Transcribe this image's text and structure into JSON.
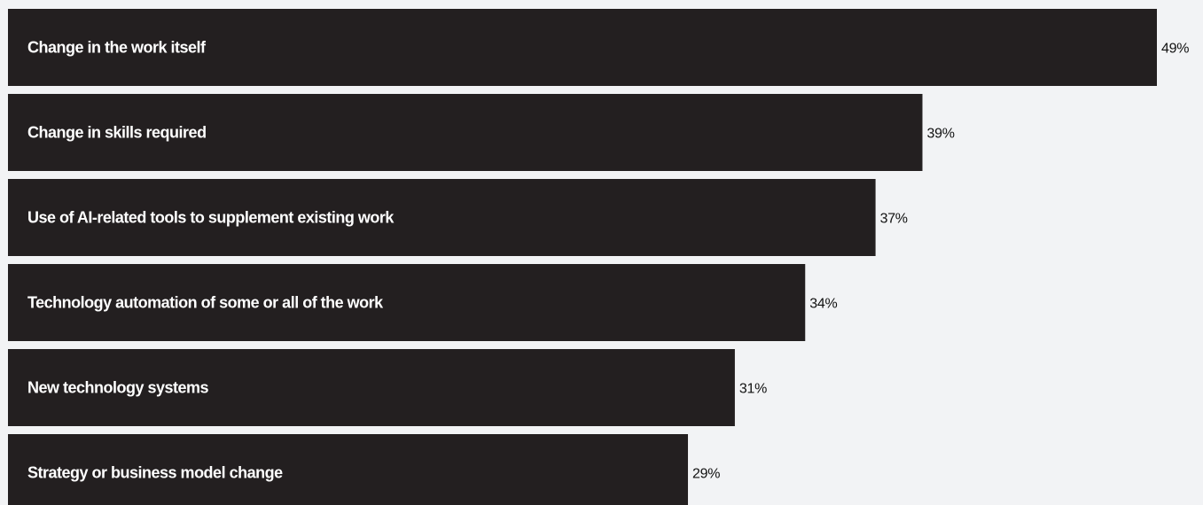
{
  "chart_data": {
    "type": "bar",
    "orientation": "horizontal",
    "categories": [
      "Change in the work itself",
      "Change in skills required",
      "Use of AI-related tools to supplement existing work",
      "Technology automation of some or all of the work",
      "New technology systems",
      "Strategy or business model change"
    ],
    "values": [
      49,
      39,
      37,
      34,
      31,
      29
    ],
    "value_labels": [
      "49%",
      "39%",
      "37%",
      "34%",
      "31%",
      "29%"
    ],
    "title": "",
    "xlabel": "",
    "ylabel": "",
    "xlim": [
      0,
      49
    ],
    "grid": false,
    "legend": "none"
  },
  "colors": {
    "background": "#f2f3f5",
    "bar": "#231f20",
    "bar_text": "#ffffff",
    "value_text": "#111111"
  }
}
